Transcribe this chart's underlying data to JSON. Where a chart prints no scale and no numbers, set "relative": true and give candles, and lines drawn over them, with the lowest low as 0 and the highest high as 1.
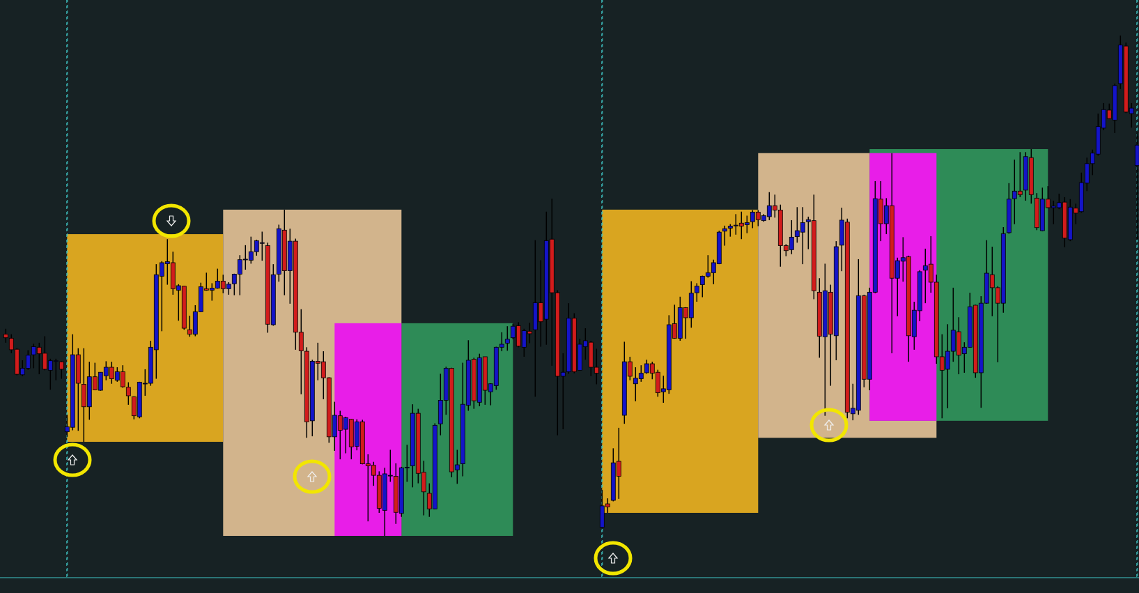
{
  "chart_data": {
    "type": "candlestick",
    "relative": true,
    "tick_labels": false,
    "colors": [
      "#d21c1c",
      "#d21c1c",
      "#d21c1c",
      "#1414c8",
      "#1414c8",
      "#1414c8",
      "#d21c1c",
      "#d21c1c",
      "#1414c8",
      "#1414c8",
      "#d21c1c",
      "#1414c8",
      "#1414c8",
      "#d21c1c",
      "#d21c1c",
      "#1414c8",
      "#d21c1c",
      "#1414c8",
      "#1414c8",
      "#d21c1c",
      "#1414c8",
      "#d21c1c",
      "#d21c1c",
      "#d21c1c",
      "#1414c8",
      "#1414c8",
      "#1414c8",
      "#1414c8",
      "#1414c8",
      "#1414c8",
      "#d21c1c",
      "#1414c8",
      "#d21c1c",
      "#d21c1c",
      "#1414c8",
      "#1414c8",
      "#d21c1c",
      "#1414c8",
      "#1414c8",
      "#d21c1c",
      "#1414c8",
      "#1414c8",
      "#1414c8",
      "#1414c8",
      "#1414c8",
      "#1414c8",
      "#1414c8",
      "#d21c1c",
      "#1414c8",
      "#1414c8",
      "#d21c1c",
      "#1414c8",
      "#d21c1c",
      "#d21c1c",
      "#d21c1c",
      "#1414c8",
      "#d21c1c",
      "#d21c1c",
      "#d21c1c",
      "#1414c8",
      "#d21c1c",
      "#1414c8",
      "#d21c1c",
      "#1414c8",
      "#d21c1c",
      "#d21c1c",
      "#d21c1c",
      "#d21c1c",
      "#1414c8",
      "#1414c8",
      "#d21c1c",
      "#1414c8",
      "#1414c8",
      "#1414c8",
      "#d21c1c",
      "#d21c1c",
      "#d21c1c",
      "#1414c8",
      "#1414c8",
      "#1414c8",
      "#d21c1c",
      "#1414c8",
      "#1414c8",
      "#1414c8",
      "#d21c1c",
      "#1414c8",
      "#d21c1c",
      "#1414c8",
      "#1414c8",
      "#1414c8",
      "#1414c8",
      "#1414c8",
      "#d21c1c",
      "#1414c8",
      "#d21c1c",
      "#1414c8",
      "#d21c1c",
      "#1414c8",
      "#d21c1c",
      "#d21c1c",
      "#1414c8",
      "#1414c8",
      "#d21c1c",
      "#1414c8",
      "#1414c8",
      "#d21c1c",
      "#d21c1c",
      "#1414c8",
      "#d21c1c",
      "#1414c8",
      "#d21c1c",
      "#1414c8",
      "#d21c1c",
      "#1414c8",
      "#1414c8",
      "#1414c8",
      "#d21c1c",
      "#d21c1c",
      "#1414c8",
      "#1414c8",
      "#d21c1c",
      "#1414c8",
      "#d21c1c",
      "#1414c8",
      "#1414c8",
      "#1414c8",
      "#1414c8",
      "#1414c8",
      "#1414c8",
      "#1414c8",
      "#1414c8",
      "#1414c8",
      "#d21c1c",
      "#1414c8",
      "#1414c8",
      "#d21c1c",
      "#1414c8",
      "#1414c8",
      "#d21c1c",
      "#d21c1c",
      "#d21c1c",
      "#1414c8",
      "#1414c8",
      "#1414c8",
      "#1414c8",
      "#d21c1c",
      "#d21c1c",
      "#1414c8",
      "#d21c1c",
      "#1414c8",
      "#1414c8",
      "#d21c1c",
      "#1414c8",
      "#1414c8",
      "#d21c1c",
      "#1414c8",
      "#1414c8",
      "#d21c1c",
      "#1414c8",
      "#d21c1c",
      "#1414c8",
      "#1414c8",
      "#d21c1c",
      "#1414c8",
      "#1414c8",
      "#1414c8",
      "#d21c1c",
      "#d21c1c",
      "#d21c1c",
      "#1414c8",
      "#1414c8",
      "#d21c1c",
      "#1414c8",
      "#1414c8",
      "#d21c1c",
      "#1414c8",
      "#1414c8",
      "#d21c1c",
      "#d21c1c",
      "#1414c8",
      "#1414c8",
      "#1414c8",
      "#d21c1c",
      "#1414c8",
      "#d21c1c",
      "#d21c1c",
      "#1414c8",
      "#d21c1c",
      "#1414c8",
      "#1414c8",
      "#d21c1c",
      "#1414c8",
      "#d21c1c",
      "#1414c8",
      "#1414c8",
      "#1414c8",
      "#1414c8",
      "#1414c8",
      "#d21c1c",
      "#1414c8",
      "#1414c8",
      "#d21c1c",
      "#1414c8",
      "#1414c8"
    ],
    "categories": [
      null,
      null,
      null,
      null,
      null,
      null,
      null,
      null,
      null,
      null,
      null,
      null,
      null,
      null,
      null,
      null,
      null,
      null,
      null,
      null,
      null,
      null,
      null,
      null,
      null,
      null,
      null,
      null,
      null,
      null,
      null,
      null,
      null,
      null,
      null,
      null,
      null,
      null,
      null,
      null,
      null,
      null,
      null,
      null,
      null,
      null,
      null,
      null,
      null,
      null,
      null,
      null,
      null,
      null,
      null,
      null,
      null,
      null,
      null,
      null,
      null,
      null,
      null,
      null,
      null,
      null,
      null,
      null,
      null,
      null,
      null,
      null,
      null,
      null,
      null,
      null,
      null,
      null,
      null,
      null,
      null,
      null,
      null,
      null,
      null,
      null,
      null,
      null,
      null,
      null,
      null,
      null,
      null,
      null,
      null,
      null,
      null,
      null,
      null,
      null,
      null,
      null,
      null,
      null,
      null,
      null,
      null,
      null,
      null,
      null,
      null,
      null,
      null,
      null,
      null,
      null,
      null,
      null,
      null,
      null,
      null,
      null,
      null,
      null,
      null,
      null,
      null,
      null,
      null,
      null,
      null,
      null,
      null,
      null,
      null,
      null,
      null,
      null,
      null,
      null,
      null,
      null,
      null,
      null,
      null,
      null,
      null,
      null,
      null,
      null,
      null,
      null,
      null,
      null,
      null,
      null,
      null,
      null,
      null,
      null,
      null,
      null,
      null,
      null,
      null,
      null,
      null,
      null,
      null,
      null,
      null,
      null,
      null,
      null,
      null,
      null,
      null,
      null,
      null,
      null,
      null,
      null,
      null,
      null,
      null,
      null,
      null,
      null,
      null,
      null,
      null,
      null,
      null,
      null,
      null,
      null,
      null,
      null,
      null,
      null,
      null,
      null,
      null,
      null
    ],
    "ohlc": [
      [
        0.403,
        0.414,
        0.386,
        0.396
      ],
      [
        0.395,
        0.403,
        0.365,
        0.372
      ],
      [
        0.373,
        0.375,
        0.321,
        0.323
      ],
      [
        0.322,
        0.351,
        0.319,
        0.335
      ],
      [
        0.335,
        0.371,
        0.332,
        0.361
      ],
      [
        0.362,
        0.384,
        0.335,
        0.378
      ],
      [
        0.377,
        0.386,
        0.323,
        0.364
      ],
      [
        0.365,
        0.399,
        0.331,
        0.333
      ],
      [
        0.331,
        0.354,
        0.292,
        0.35
      ],
      [
        0.349,
        0.354,
        0.311,
        0.35
      ],
      [
        0.348,
        0.349,
        0.314,
        0.333
      ],
      [
        0.208,
        0.242,
        0.198,
        0.218
      ],
      [
        0.217,
        0.403,
        0.211,
        0.362
      ],
      [
        0.362,
        0.375,
        0.21,
        0.305
      ],
      [
        0.303,
        0.375,
        0.188,
        0.258
      ],
      [
        0.258,
        0.348,
        0.232,
        0.318
      ],
      [
        0.318,
        0.346,
        0.291,
        0.292
      ],
      [
        0.291,
        0.327,
        0.29,
        0.327
      ],
      [
        0.32,
        0.349,
        0.311,
        0.337
      ],
      [
        0.337,
        0.348,
        0.304,
        0.314
      ],
      [
        0.311,
        0.337,
        0.308,
        0.328
      ],
      [
        0.328,
        0.341,
        0.296,
        0.298
      ],
      [
        0.297,
        0.307,
        0.262,
        0.28
      ],
      [
        0.278,
        0.279,
        0.233,
        0.24
      ],
      [
        0.238,
        0.308,
        0.235,
        0.307
      ],
      [
        0.304,
        0.333,
        0.28,
        0.305
      ],
      [
        0.305,
        0.39,
        0.3,
        0.377
      ],
      [
        0.372,
        0.543,
        0.314,
        0.522
      ],
      [
        0.519,
        0.549,
        0.409,
        0.546
      ],
      [
        0.544,
        0.593,
        0.502,
        0.548
      ],
      [
        0.546,
        0.568,
        0.482,
        0.494
      ],
      [
        0.491,
        0.503,
        0.43,
        0.5
      ],
      [
        0.499,
        0.5,
        0.412,
        0.415
      ],
      [
        0.412,
        0.44,
        0.398,
        0.403
      ],
      [
        0.403,
        0.461,
        0.399,
        0.448
      ],
      [
        0.448,
        0.506,
        0.447,
        0.498
      ],
      [
        0.494,
        0.526,
        0.49,
        0.491
      ],
      [
        0.491,
        0.505,
        0.47,
        0.495
      ],
      [
        0.495,
        0.534,
        0.494,
        0.509
      ],
      [
        0.509,
        0.522,
        0.485,
        0.494
      ],
      [
        0.494,
        0.507,
        0.482,
        0.503
      ],
      [
        0.504,
        0.524,
        0.481,
        0.523
      ],
      [
        0.523,
        0.561,
        0.481,
        0.552
      ],
      [
        0.552,
        0.581,
        0.532,
        0.553
      ],
      [
        0.551,
        0.598,
        0.544,
        0.568
      ],
      [
        0.568,
        0.592,
        0.56,
        0.59
      ],
      [
        0.585,
        0.608,
        0.55,
        0.586
      ],
      [
        0.58,
        0.586,
        0.406,
        0.423
      ],
      [
        0.422,
        0.543,
        0.42,
        0.522
      ],
      [
        0.523,
        0.622,
        0.508,
        0.614
      ],
      [
        0.611,
        0.652,
        0.481,
        0.53
      ],
      [
        0.53,
        0.614,
        0.464,
        0.589
      ],
      [
        0.589,
        0.594,
        0.372,
        0.407
      ],
      [
        0.407,
        0.453,
        0.283,
        0.37
      ],
      [
        0.369,
        0.377,
        0.196,
        0.228
      ],
      [
        0.23,
        0.352,
        0.199,
        0.349
      ],
      [
        0.349,
        0.386,
        0.311,
        0.345
      ],
      [
        0.348,
        0.369,
        0.273,
        0.316
      ],
      [
        0.316,
        0.317,
        0.186,
        0.198
      ],
      [
        0.198,
        0.268,
        0.17,
        0.241
      ],
      [
        0.24,
        0.25,
        0.153,
        0.211
      ],
      [
        0.213,
        0.238,
        0.165,
        0.236
      ],
      [
        0.233,
        0.234,
        0.153,
        0.178
      ],
      [
        0.179,
        0.233,
        0.171,
        0.228
      ],
      [
        0.228,
        0.232,
        0.143,
        0.144
      ],
      [
        0.144,
        0.163,
        0.029,
        0.14
      ],
      [
        0.141,
        0.148,
        0.1,
        0.121
      ],
      [
        0.121,
        0.129,
        0.046,
        0.055
      ],
      [
        0.051,
        0.136,
        0,
        0.124
      ],
      [
        0.12,
        0.172,
        0.108,
        0.121
      ],
      [
        0.119,
        0.145,
        0.024,
        0.047
      ],
      [
        0.045,
        0.138,
        0.038,
        0.136
      ],
      [
        0.136,
        0.182,
        0.108,
        0.137
      ],
      [
        0.14,
        0.263,
        0.097,
        0.245
      ],
      [
        0.245,
        0.254,
        0.105,
        0.125
      ],
      [
        0.127,
        0.15,
        0.041,
        0.088
      ],
      [
        0.085,
        0.105,
        0.038,
        0.054
      ],
      [
        0.054,
        0.225,
        0.053,
        0.221
      ],
      [
        0.224,
        0.324,
        0.201,
        0.271
      ],
      [
        0.271,
        0.338,
        0.242,
        0.335
      ],
      [
        0.335,
        0.336,
        0.117,
        0.128
      ],
      [
        0.132,
        0.172,
        0.104,
        0.142
      ],
      [
        0.144,
        0.346,
        0.119,
        0.263
      ],
      [
        0.261,
        0.391,
        0.25,
        0.351
      ],
      [
        0.353,
        0.356,
        0.254,
        0.27
      ],
      [
        0.267,
        0.364,
        0.259,
        0.356
      ],
      [
        0.358,
        0.358,
        0.262,
        0.291
      ],
      [
        0.288,
        0.305,
        0.261,
        0.304
      ],
      [
        0.3,
        0.378,
        0.292,
        0.377
      ],
      [
        0.377,
        0.407,
        0.369,
        0.383
      ],
      [
        0.385,
        0.419,
        0.37,
        0.393
      ],
      [
        0.396,
        0.424,
        0.393,
        0.419
      ],
      [
        0.42,
        0.427,
        0.377,
        0.379
      ],
      [
        0.377,
        0.414,
        0.358,
        0.41
      ],
      [
        0.409,
        0.426,
        0.385,
        0.404
      ],
      [
        0.412,
        0.591,
        0.278,
        0.466
      ],
      [
        0.466,
        0.551,
        0.378,
        0.428
      ],
      [
        0.433,
        0.648,
        0.382,
        0.59
      ],
      [
        0.593,
        0.674,
        0.34,
        0.486
      ],
      [
        0.486,
        0.491,
        0.201,
        0.319
      ],
      [
        0.319,
        0.365,
        0.213,
        0.327
      ],
      [
        0.328,
        0.465,
        0.324,
        0.435
      ],
      [
        0.435,
        0.445,
        0.325,
        0.328
      ],
      [
        0.331,
        0.394,
        0.33,
        0.383
      ],
      [
        0.378,
        0.415,
        0.352,
        0.39
      ],
      [
        0.387,
        0.39,
        0.319,
        0.337
      ],
      [
        0.337,
        0.374,
        0.303,
        0.325
      ],
      [
        0.017,
        0.092,
        0.016,
        0.06
      ],
      [
        0.064,
        0.075,
        0.046,
        0.058
      ],
      [
        0.071,
        0.175,
        0.069,
        0.146
      ],
      [
        0.149,
        0.216,
        0.074,
        0.119
      ],
      [
        0.241,
        0.388,
        0.224,
        0.348
      ],
      [
        0.348,
        0.358,
        0.311,
        0.319
      ],
      [
        0.304,
        0.337,
        0.269,
        0.315
      ],
      [
        0.314,
        0.341,
        0.308,
        0.325
      ],
      [
        0.326,
        0.352,
        0.324,
        0.344
      ],
      [
        0.344,
        0.348,
        0.313,
        0.325
      ],
      [
        0.327,
        0.332,
        0.278,
        0.286
      ],
      [
        0.288,
        0.32,
        0.266,
        0.294
      ],
      [
        0.292,
        0.441,
        0.284,
        0.422
      ],
      [
        0.424,
        0.462,
        0.394,
        0.395
      ],
      [
        0.395,
        0.478,
        0.39,
        0.456
      ],
      [
        0.456,
        0.457,
        0.394,
        0.436
      ],
      [
        0.436,
        0.509,
        0.416,
        0.485
      ],
      [
        0.486,
        0.505,
        0.468,
        0.499
      ],
      [
        0.502,
        0.52,
        0.477,
        0.519
      ],
      [
        0.519,
        0.561,
        0.516,
        0.526
      ],
      [
        0.526,
        0.552,
        0.503,
        0.546
      ],
      [
        0.544,
        0.61,
        0.543,
        0.607
      ],
      [
        0.609,
        0.62,
        0.58,
        0.614
      ],
      [
        0.615,
        0.623,
        0.598,
        0.619
      ],
      [
        0.62,
        0.643,
        0.602,
        0.621
      ],
      [
        0.625,
        0.648,
        0.593,
        0.619
      ],
      [
        0.622,
        0.64,
        0.605,
        0.626
      ],
      [
        0.628,
        0.651,
        0.615,
        0.647
      ],
      [
        0.647,
        0.651,
        0.619,
        0.632
      ],
      [
        0.63,
        0.643,
        0.628,
        0.64
      ],
      [
        0.638,
        0.687,
        0.631,
        0.66
      ],
      [
        0.66,
        0.682,
        0.636,
        0.651
      ],
      [
        0.651,
        0.662,
        0.538,
        0.58
      ],
      [
        0.58,
        0.583,
        0.559,
        0.57
      ],
      [
        0.572,
        0.631,
        0.563,
        0.597
      ],
      [
        0.598,
        0.657,
        0.586,
        0.61
      ],
      [
        0.607,
        0.657,
        0.543,
        0.626
      ],
      [
        0.628,
        0.638,
        0.573,
        0.632
      ],
      [
        0.63,
        0.682,
        0.473,
        0.49
      ],
      [
        0.487,
        0.515,
        0.356,
        0.399
      ],
      [
        0.398,
        0.544,
        0.24,
        0.49
      ],
      [
        0.487,
        0.502,
        0.3,
        0.403
      ],
      [
        0.4,
        0.589,
        0.351,
        0.578
      ],
      [
        0.581,
        0.656,
        0.529,
        0.631
      ],
      [
        0.627,
        0.634,
        0.235,
        0.247
      ],
      [
        0.244,
        0.304,
        0.231,
        0.255
      ],
      [
        0.251,
        0.553,
        0.242,
        0.48
      ],
      [
        0.48,
        0.482,
        0.297,
        0.313
      ],
      [
        0.313,
        0.496,
        0.291,
        0.487
      ],
      [
        0.487,
        0.709,
        0.485,
        0.674
      ],
      [
        0.673,
        0.709,
        0.589,
        0.624
      ],
      [
        0.624,
        0.675,
        0.603,
        0.66
      ],
      [
        0.66,
        0.765,
        0.365,
        0.515
      ],
      [
        0.515,
        0.556,
        0.439,
        0.55
      ],
      [
        0.549,
        0.597,
        0.508,
        0.556
      ],
      [
        0.558,
        0.56,
        0.348,
        0.4
      ],
      [
        0.398,
        0.468,
        0.372,
        0.451
      ],
      [
        0.45,
        0.531,
        0.429,
        0.528
      ],
      [
        0.531,
        0.574,
        0.465,
        0.54
      ],
      [
        0.543,
        0.599,
        0.486,
        0.507
      ],
      [
        0.507,
        0.522,
        0.344,
        0.358
      ],
      [
        0.358,
        0.403,
        0.235,
        0.331
      ],
      [
        0.333,
        0.423,
        0.255,
        0.369
      ],
      [
        0.369,
        0.496,
        0.348,
        0.411
      ],
      [
        0.408,
        0.437,
        0.323,
        0.361
      ],
      [
        0.364,
        0.387,
        0.326,
        0.377
      ],
      [
        0.377,
        0.486,
        0.376,
        0.458
      ],
      [
        0.461,
        0.462,
        0.316,
        0.326
      ],
      [
        0.326,
        0.479,
        0.256,
        0.465
      ],
      [
        0.465,
        0.591,
        0.464,
        0.525
      ],
      [
        0.522,
        0.578,
        0.439,
        0.496
      ],
      [
        0.496,
        0.499,
        0.347,
        0.465
      ],
      [
        0.465,
        0.617,
        0.446,
        0.604
      ],
      [
        0.606,
        0.705,
        0.604,
        0.673
      ],
      [
        0.674,
        0.752,
        0.623,
        0.689
      ],
      [
        0.689,
        0.767,
        0.677,
        0.682
      ],
      [
        0.691,
        0.767,
        0.67,
        0.758
      ],
      [
        0.756,
        0.773,
        0.664,
        0.682
      ],
      [
        0.675,
        0.685,
        0.611,
        0.616
      ],
      [
        0.61,
        0.696,
        0.609,
        0.673
      ],
      [
        0.673,
        0.699,
        0.655,
        0.656
      ],
      [
        0.656,
        0.67,
        0.623,
        0.659
      ],
      [
        0.656,
        0.684,
        0.653,
        0.666
      ],
      [
        0.667,
        0.677,
        0.577,
        0.595
      ],
      [
        0.592,
        0.673,
        0.589,
        0.657
      ],
      [
        0.655,
        0.664,
        0.623,
        0.645
      ],
      [
        0.648,
        0.726,
        0.646,
        0.706
      ],
      [
        0.705,
        0.756,
        0.689,
        0.744
      ],
      [
        0.744,
        0.772,
        0.721,
        0.765
      ],
      [
        0.763,
        0.844,
        0.76,
        0.818
      ],
      [
        0.815,
        0.865,
        0.811,
        0.852
      ],
      [
        0.851,
        0.864,
        0.833,
        0.834
      ],
      [
        0.831,
        0.904,
        0.805,
        0.9
      ],
      [
        0.904,
        1,
        0.893,
        0.981
      ],
      [
        0.979,
        0.986,
        0.845,
        0.847
      ],
      [
        0.844,
        0.865,
        0.816,
        0.855
      ],
      [
        0.74,
        0.806,
        0.592,
        0.781
      ]
    ]
  }
}
